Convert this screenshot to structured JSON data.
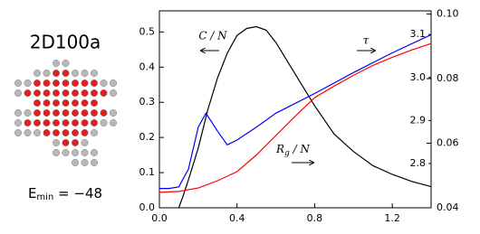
{
  "header": {
    "title": "2D100a",
    "energy": {
      "symbol": "E",
      "sub": "min",
      "rest": " = −48"
    }
  },
  "chart_data": {
    "type": "line",
    "xlim": [
      0,
      1.4
    ],
    "xticks": [
      {
        "value": 0,
        "label": "0.0"
      },
      0.4,
      0.8,
      1.2
    ],
    "ylim": [
      0,
      0.56
    ],
    "yticks": [
      {
        "value": 0,
        "label": "0.0"
      },
      0.1,
      0.2,
      0.3,
      0.4,
      0.5
    ],
    "y2lim": [
      0.04,
      0.101
    ],
    "y2ticks": [
      0.04,
      0.06,
      0.08,
      {
        "value": 0.1,
        "label": "0.10"
      }
    ],
    "y3lim": [
      2.697,
      3.155
    ],
    "y3ticks": [
      2.8,
      2.9,
      {
        "value": 3,
        "label": "3.0"
      },
      3.1
    ],
    "annotations": {
      "cn": "C / N",
      "tau": "τ",
      "rg": "R",
      "rg_sub": "g",
      "rg_tail": " / N"
    },
    "series": [
      {
        "color": "#000000",
        "axis": "y",
        "x": [
          0.1,
          0.12,
          0.15,
          0.2,
          0.25,
          0.3,
          0.35,
          0.4,
          0.45,
          0.5,
          0.55,
          0.6,
          0.7,
          0.8,
          0.9,
          1.0,
          1.1,
          1.2,
          1.3,
          1.4
        ],
        "values": [
          0.0,
          0.03,
          0.08,
          0.17,
          0.28,
          0.37,
          0.44,
          0.49,
          0.51,
          0.515,
          0.505,
          0.47,
          0.38,
          0.29,
          0.21,
          0.16,
          0.12,
          0.095,
          0.075,
          0.06
        ]
      },
      {
        "color": "#0000ff",
        "axis": "y2",
        "x": [
          0,
          0.05,
          0.1,
          0.15,
          0.2,
          0.24,
          0.3,
          0.35,
          0.4,
          0.5,
          0.6,
          0.8,
          1.0,
          1.2,
          1.4
        ],
        "values": [
          0.046,
          0.046,
          0.0465,
          0.052,
          0.065,
          0.0693,
          0.0637,
          0.0595,
          0.061,
          0.065,
          0.0693,
          0.0754,
          0.0819,
          0.088,
          0.0936
        ]
      },
      {
        "color": "#ff0000",
        "axis": "y3",
        "x": [
          0,
          0.1,
          0.2,
          0.3,
          0.4,
          0.5,
          0.6,
          0.7,
          0.8,
          0.9,
          1.0,
          1.1,
          1.2,
          1.3,
          1.4
        ],
        "values": [
          2.733,
          2.735,
          2.743,
          2.76,
          2.781,
          2.82,
          2.865,
          2.91,
          2.953,
          2.98,
          3.005,
          3.028,
          3.047,
          3.064,
          3.079
        ]
      }
    ]
  }
}
